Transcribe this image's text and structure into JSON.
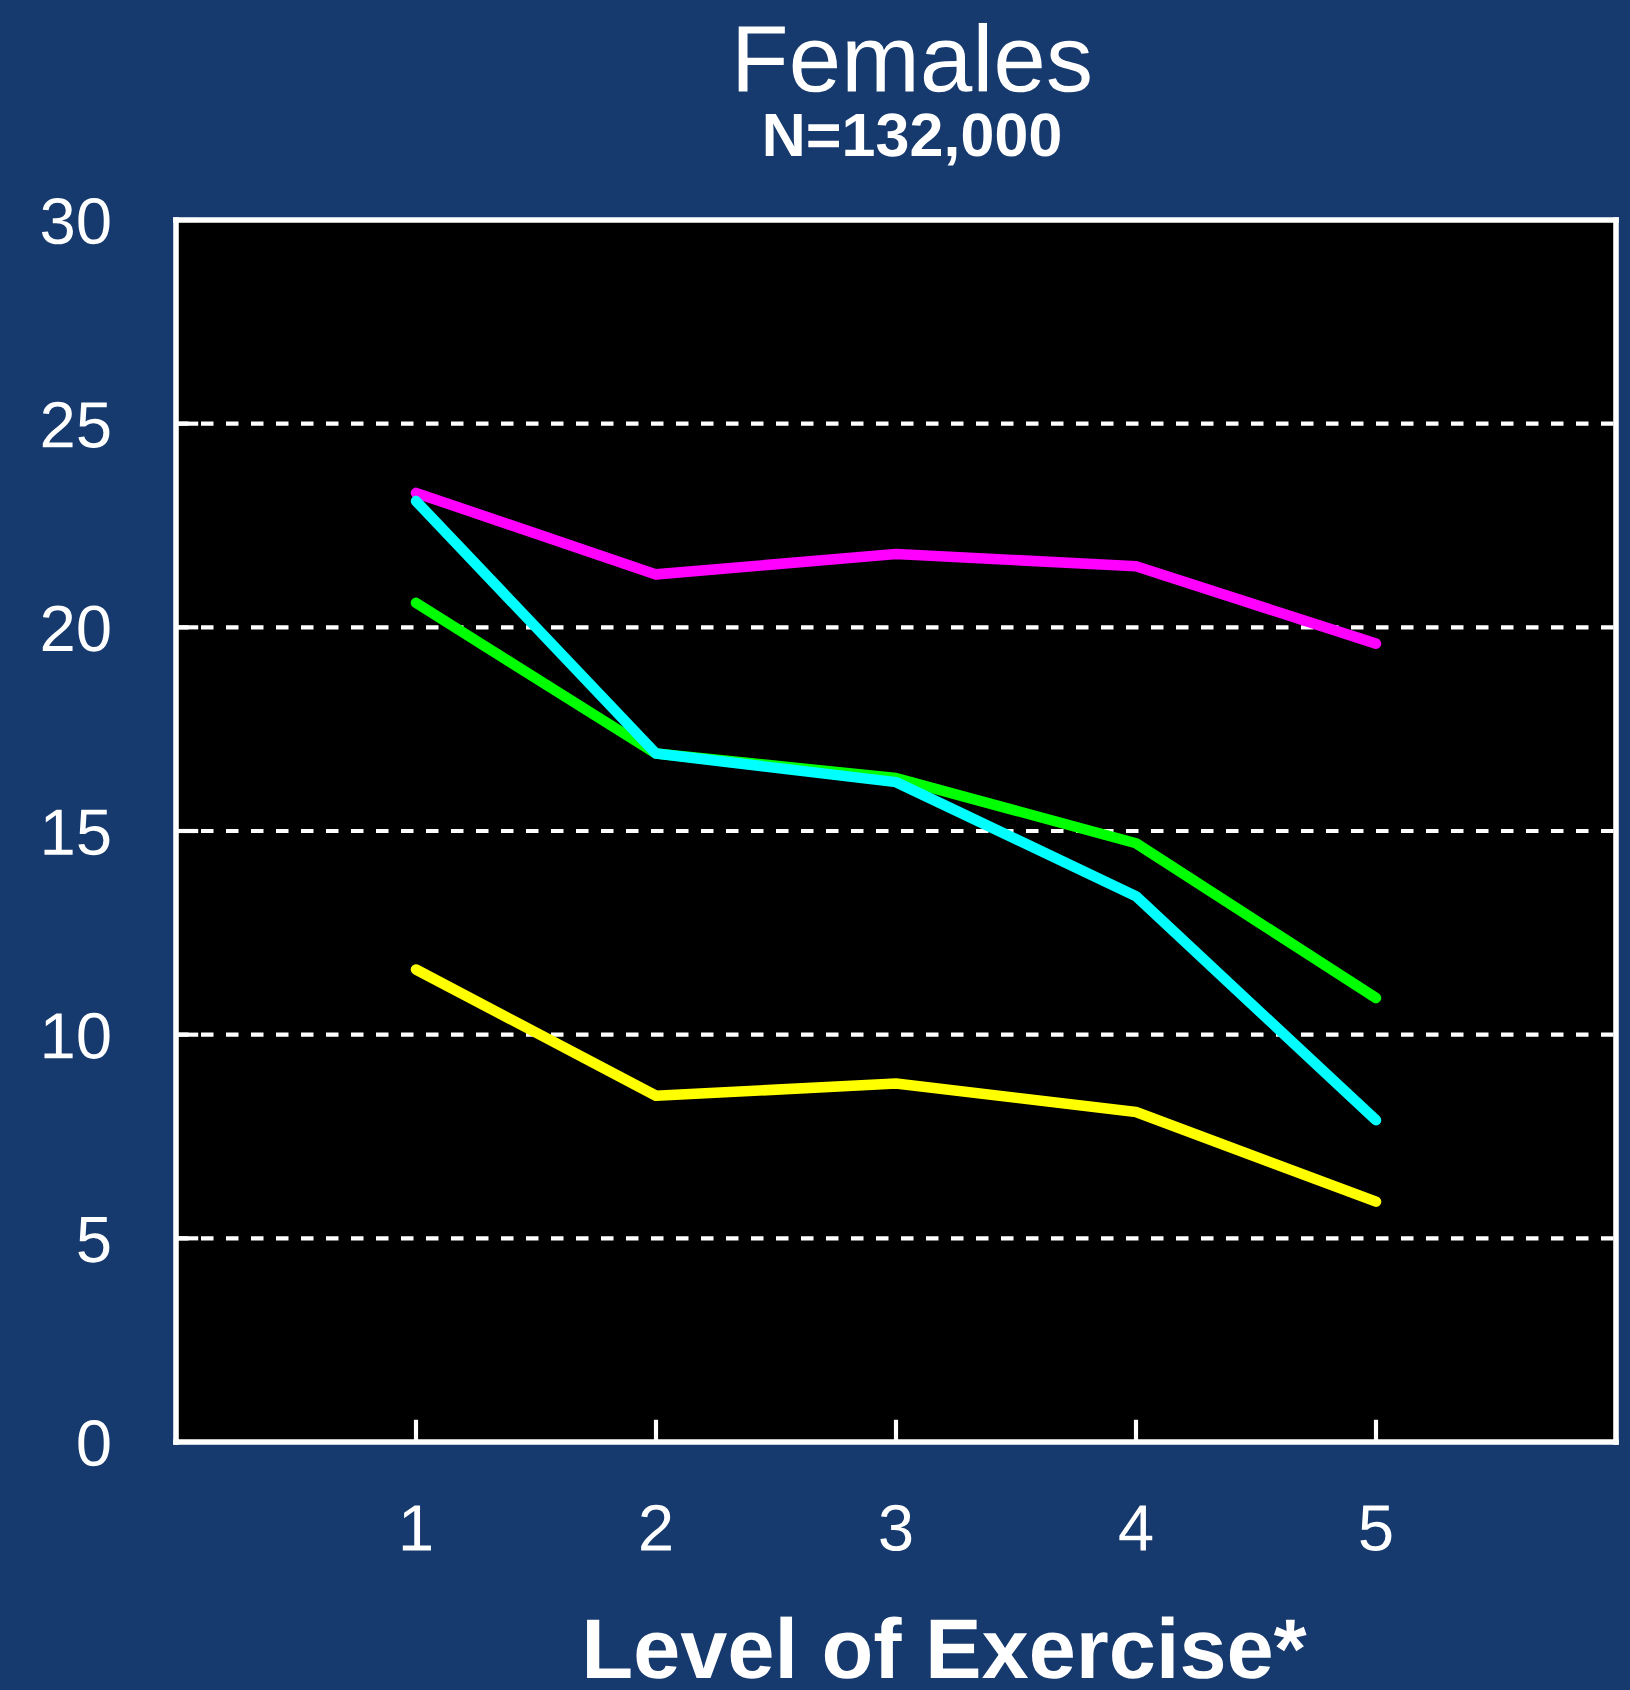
{
  "chart_data": {
    "type": "line",
    "title": "Females",
    "subtitle": "N=132,000",
    "xlabel": "Level of Exercise*",
    "x": [
      1,
      2,
      3,
      4,
      5
    ],
    "xlim": [
      0,
      6
    ],
    "xticks": [
      1,
      2,
      3,
      4,
      5
    ],
    "ylim": [
      0,
      30
    ],
    "yticks": [
      0,
      5,
      10,
      15,
      20,
      25,
      30
    ],
    "grid": "y",
    "line_style": "solid",
    "series": [
      {
        "color": "#ff00ff",
        "values": [
          23.3,
          21.3,
          21.8,
          21.5,
          19.6
        ]
      },
      {
        "color": "#00ff00",
        "values": [
          20.6,
          16.9,
          16.3,
          14.7,
          10.9
        ]
      },
      {
        "color": "#00ffff",
        "values": [
          23.1,
          16.9,
          16.2,
          13.4,
          7.9
        ]
      },
      {
        "color": "#ffff00",
        "values": [
          11.6,
          8.5,
          8.8,
          8.1,
          5.9
        ]
      }
    ]
  }
}
